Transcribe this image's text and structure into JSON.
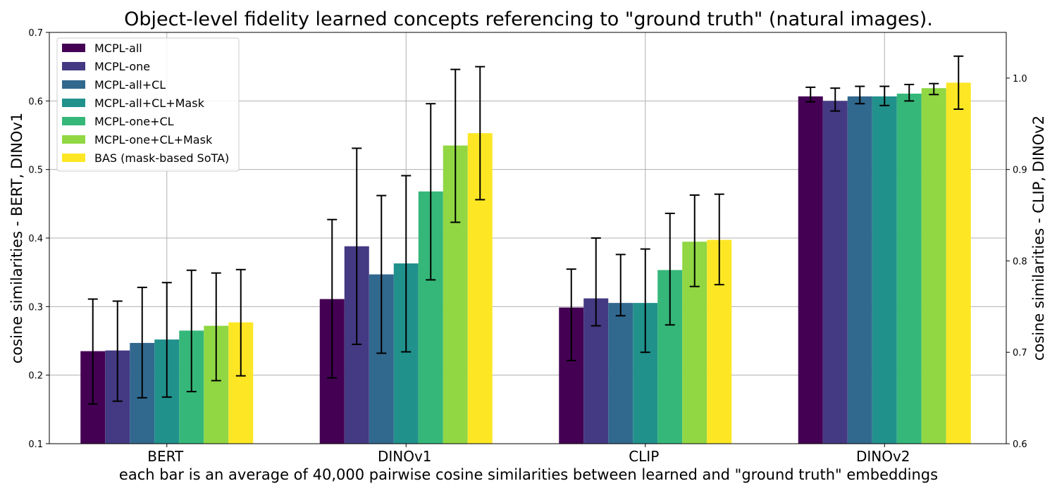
{
  "chart_data": {
    "type": "bar",
    "title": "Object-level fidelity learned concepts referencing to \"ground truth\" (natural images).",
    "xlabel": "each bar is an average of 40,000 pairwise cosine similarities between learned and \"ground truth\" embeddings",
    "ylabel": "cosine similarities - BERT, DINOv1",
    "ylabel_right": "cosine similarities - CLIP, DINOv2",
    "ylim": [
      0.1,
      0.7
    ],
    "ylim_right": [
      0.6,
      1.05
    ],
    "yticks": [
      "0.1",
      "0.2",
      "0.3",
      "0.4",
      "0.5",
      "0.6",
      "0.7"
    ],
    "yticks_right": [
      "0.6",
      "0.7",
      "0.8",
      "0.9",
      "1.0"
    ],
    "grid": true,
    "legend_position": "top-left",
    "categories": [
      "BERT",
      "DINOv1",
      "CLIP",
      "DINOv2"
    ],
    "category_axis": [
      "left",
      "left",
      "right",
      "right"
    ],
    "series": [
      {
        "name": "MCPL-all",
        "color": "#440154",
        "values": [
          0.235,
          0.311,
          0.749,
          0.98
        ],
        "err_low": [
          0.158,
          0.196,
          0.691,
          0.974
        ],
        "err_high": [
          0.311,
          0.427,
          0.791,
          0.99
        ]
      },
      {
        "name": "MCPL-one",
        "color": "#443983",
        "values": [
          0.236,
          0.388,
          0.759,
          0.975
        ],
        "err_low": [
          0.162,
          0.245,
          0.729,
          0.964
        ],
        "err_high": [
          0.308,
          0.531,
          0.825,
          0.989
        ]
      },
      {
        "name": "MCPL-all+CL",
        "color": "#31688e",
        "values": [
          0.247,
          0.347,
          0.754,
          0.98
        ],
        "err_low": [
          0.167,
          0.232,
          0.74,
          0.972
        ],
        "err_high": [
          0.328,
          0.462,
          0.807,
          0.991
        ]
      },
      {
        "name": "MCPL-all+CL+Mask",
        "color": "#21918c",
        "values": [
          0.252,
          0.363,
          0.754,
          0.98
        ],
        "err_low": [
          0.168,
          0.234,
          0.7,
          0.97
        ],
        "err_high": [
          0.335,
          0.491,
          0.813,
          0.991
        ]
      },
      {
        "name": "MCPL-one+CL",
        "color": "#35b779",
        "values": [
          0.265,
          0.468,
          0.79,
          0.983
        ],
        "err_low": [
          0.176,
          0.339,
          0.73,
          0.975
        ],
        "err_high": [
          0.353,
          0.596,
          0.852,
          0.993
        ]
      },
      {
        "name": "MCPL-one+CL+Mask",
        "color": "#90d743",
        "values": [
          0.272,
          0.535,
          0.821,
          0.989
        ],
        "err_low": [
          0.192,
          0.423,
          0.772,
          0.982
        ],
        "err_high": [
          0.349,
          0.646,
          0.872,
          0.994
        ]
      },
      {
        "name": "BAS (mask-based SoTA)",
        "color": "#fde725",
        "values": [
          0.277,
          0.553,
          0.823,
          0.995
        ],
        "err_low": [
          0.199,
          0.456,
          0.774,
          0.966
        ],
        "err_high": [
          0.354,
          0.65,
          0.873,
          1.024
        ]
      }
    ]
  }
}
